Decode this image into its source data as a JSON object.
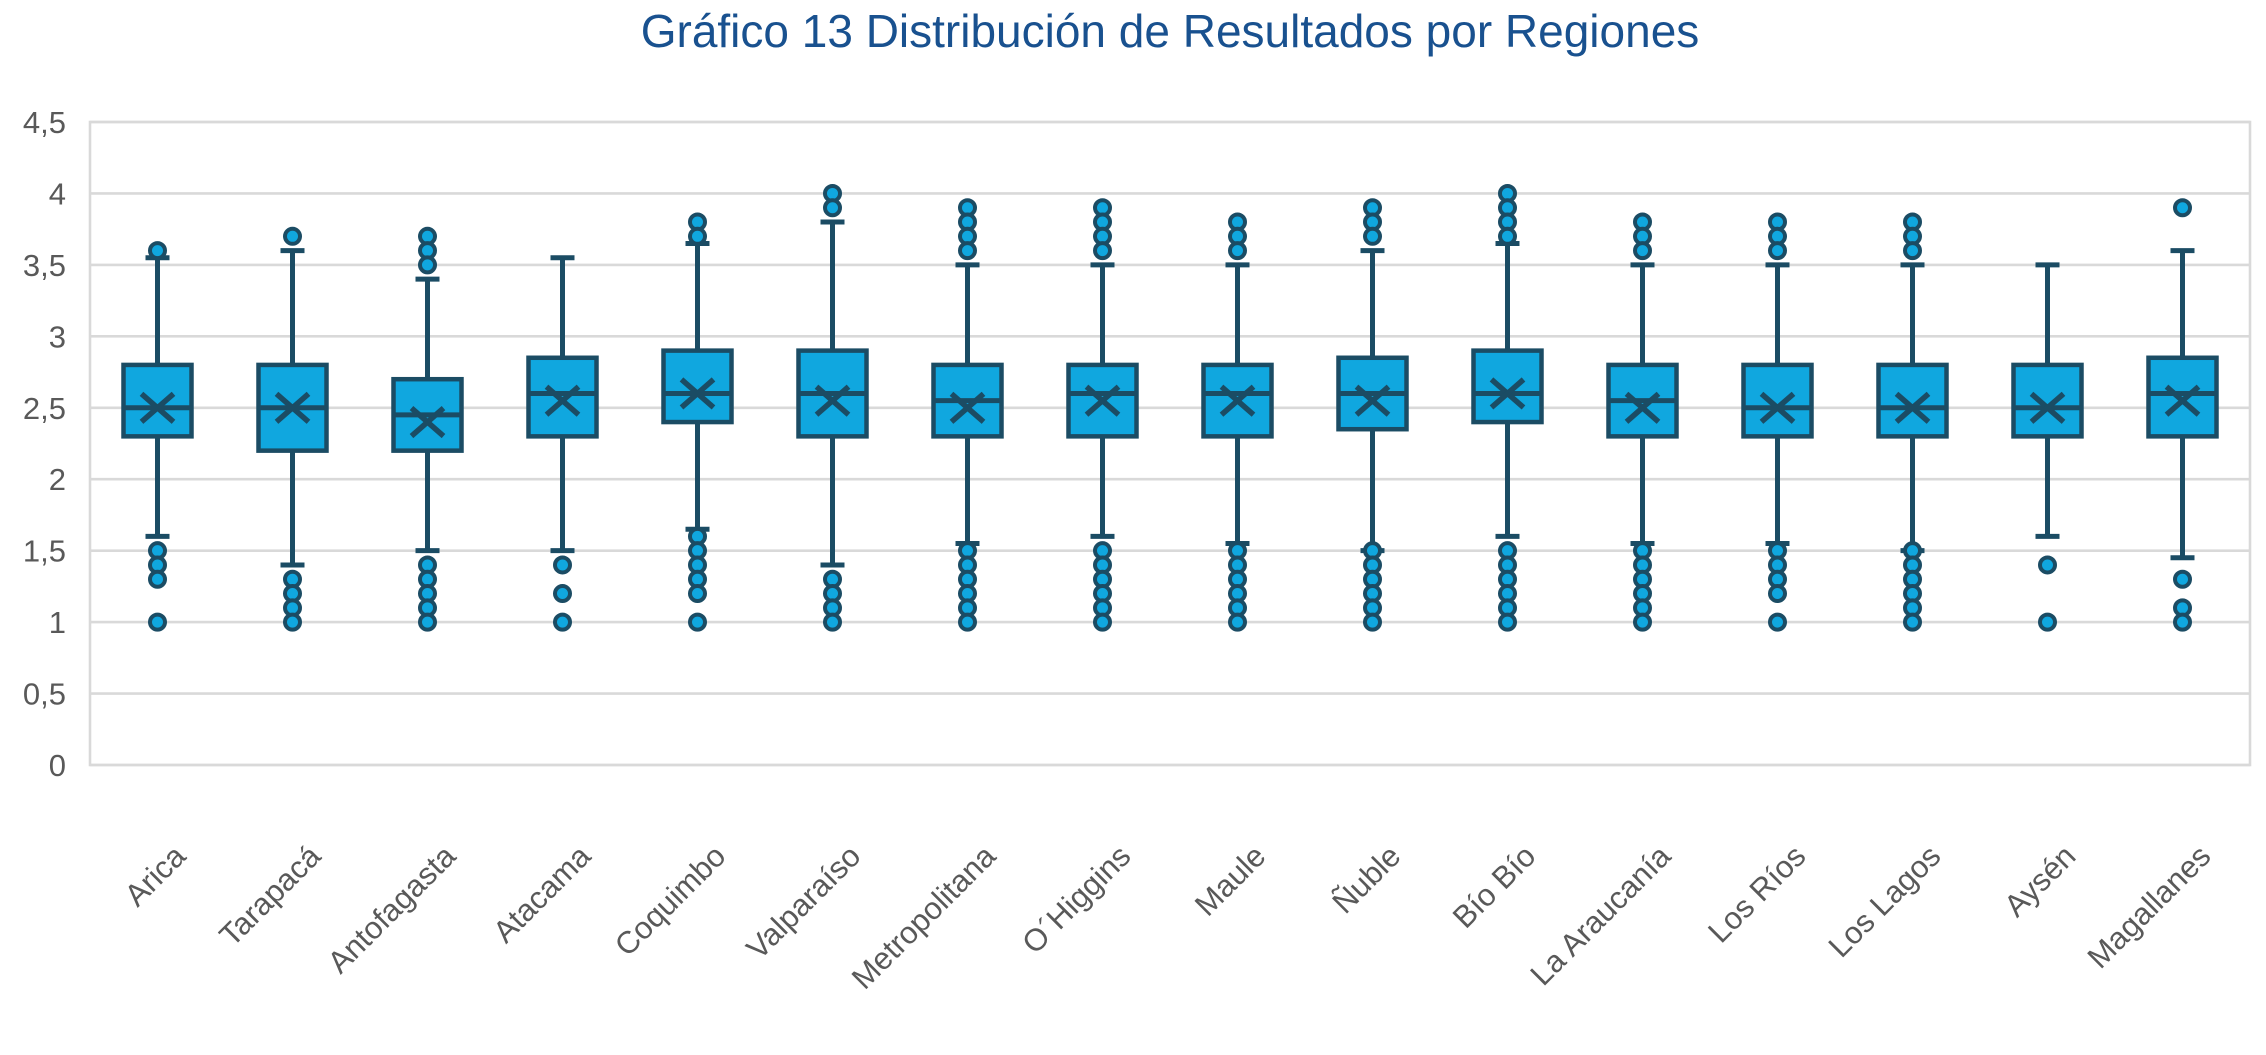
{
  "colors": {
    "title": "#19518F",
    "box_fill": "#10A7DF",
    "box_stroke": "#1B4C64",
    "axis_text": "#595959",
    "gridline": "#D9D9D9"
  },
  "chart_data": {
    "type": "boxplot",
    "title": "Gráfico 13 Distribución de Resultados por Regiones",
    "grid": "horizontal",
    "legend": "none",
    "y_axis": {
      "min": 0,
      "max": 4.5,
      "step": 0.5,
      "tick_labels": [
        "0",
        "0,5",
        "1",
        "1,5",
        "2",
        "2,5",
        "3",
        "3,5",
        "4",
        "4,5"
      ]
    },
    "categories": [
      "Arica",
      "Tarapacá",
      "Antofagasta",
      "Atacama",
      "Coquimbo",
      "Valparaíso",
      "Metropolitana",
      "O´Higgins",
      "Maule",
      "Ñuble",
      "Bío Bío",
      "La Araucanía",
      "Los Ríos",
      "Los Lagos",
      "Aysén",
      "Magallanes"
    ],
    "series": [
      {
        "name": "Arica",
        "whisker_low": 1.6,
        "q1": 2.3,
        "median": 2.5,
        "mean": 2.5,
        "q3": 2.8,
        "whisker_high": 3.55,
        "outliers_high": [
          3.6
        ],
        "outliers_low": [
          1.5,
          1.4,
          1.3,
          1.0
        ]
      },
      {
        "name": "Tarapacá",
        "whisker_low": 1.4,
        "q1": 2.2,
        "median": 2.5,
        "mean": 2.5,
        "q3": 2.8,
        "whisker_high": 3.6,
        "outliers_high": [
          3.7
        ],
        "outliers_low": [
          1.3,
          1.2,
          1.1,
          1.0
        ]
      },
      {
        "name": "Antofagasta",
        "whisker_low": 1.5,
        "q1": 2.2,
        "median": 2.45,
        "mean": 2.4,
        "q3": 2.7,
        "whisker_high": 3.4,
        "outliers_high": [
          3.7,
          3.6,
          3.5
        ],
        "outliers_low": [
          1.4,
          1.3,
          1.2,
          1.1,
          1.0
        ]
      },
      {
        "name": "Atacama",
        "whisker_low": 1.5,
        "q1": 2.3,
        "median": 2.6,
        "mean": 2.55,
        "q3": 2.85,
        "whisker_high": 3.55,
        "outliers_high": [],
        "outliers_low": [
          1.4,
          1.2,
          1.0
        ]
      },
      {
        "name": "Coquimbo",
        "whisker_low": 1.65,
        "q1": 2.4,
        "median": 2.6,
        "mean": 2.6,
        "q3": 2.9,
        "whisker_high": 3.65,
        "outliers_high": [
          3.8,
          3.7
        ],
        "outliers_low": [
          1.6,
          1.5,
          1.4,
          1.3,
          1.2,
          1.0
        ]
      },
      {
        "name": "Valparaíso",
        "whisker_low": 1.4,
        "q1": 2.3,
        "median": 2.6,
        "mean": 2.55,
        "q3": 2.9,
        "whisker_high": 3.8,
        "outliers_high": [
          4.0,
          3.9
        ],
        "outliers_low": [
          1.3,
          1.2,
          1.1,
          1.0
        ]
      },
      {
        "name": "Metropolitana",
        "whisker_low": 1.55,
        "q1": 2.3,
        "median": 2.55,
        "mean": 2.5,
        "q3": 2.8,
        "whisker_high": 3.5,
        "outliers_high": [
          3.9,
          3.8,
          3.7,
          3.6
        ],
        "outliers_low": [
          1.5,
          1.4,
          1.3,
          1.2,
          1.1,
          1.0
        ]
      },
      {
        "name": "O´Higgins",
        "whisker_low": 1.6,
        "q1": 2.3,
        "median": 2.6,
        "mean": 2.55,
        "q3": 2.8,
        "whisker_high": 3.5,
        "outliers_high": [
          3.9,
          3.8,
          3.7,
          3.6
        ],
        "outliers_low": [
          1.5,
          1.4,
          1.3,
          1.2,
          1.1,
          1.0
        ]
      },
      {
        "name": "Maule",
        "whisker_low": 1.55,
        "q1": 2.3,
        "median": 2.6,
        "mean": 2.55,
        "q3": 2.8,
        "whisker_high": 3.5,
        "outliers_high": [
          3.8,
          3.7,
          3.6
        ],
        "outliers_low": [
          1.5,
          1.4,
          1.3,
          1.2,
          1.1,
          1.0
        ]
      },
      {
        "name": "Ñuble",
        "whisker_low": 1.5,
        "q1": 2.35,
        "median": 2.6,
        "mean": 2.55,
        "q3": 2.85,
        "whisker_high": 3.6,
        "outliers_high": [
          3.9,
          3.8,
          3.7
        ],
        "outliers_low": [
          1.5,
          1.4,
          1.3,
          1.2,
          1.1,
          1.0
        ]
      },
      {
        "name": "Bío Bío",
        "whisker_low": 1.6,
        "q1": 2.4,
        "median": 2.6,
        "mean": 2.6,
        "q3": 2.9,
        "whisker_high": 3.65,
        "outliers_high": [
          4.0,
          3.9,
          3.8,
          3.7
        ],
        "outliers_low": [
          1.5,
          1.4,
          1.3,
          1.2,
          1.1,
          1.0
        ]
      },
      {
        "name": "La Araucanía",
        "whisker_low": 1.55,
        "q1": 2.3,
        "median": 2.55,
        "mean": 2.5,
        "q3": 2.8,
        "whisker_high": 3.5,
        "outliers_high": [
          3.8,
          3.7,
          3.6
        ],
        "outliers_low": [
          1.5,
          1.4,
          1.3,
          1.2,
          1.1,
          1.0
        ]
      },
      {
        "name": "Los Ríos",
        "whisker_low": 1.55,
        "q1": 2.3,
        "median": 2.5,
        "mean": 2.5,
        "q3": 2.8,
        "whisker_high": 3.5,
        "outliers_high": [
          3.8,
          3.7,
          3.6
        ],
        "outliers_low": [
          1.5,
          1.4,
          1.3,
          1.2,
          1.0
        ]
      },
      {
        "name": "Los Lagos",
        "whisker_low": 1.5,
        "q1": 2.3,
        "median": 2.5,
        "mean": 2.5,
        "q3": 2.8,
        "whisker_high": 3.5,
        "outliers_high": [
          3.8,
          3.7,
          3.6
        ],
        "outliers_low": [
          1.5,
          1.4,
          1.3,
          1.2,
          1.1,
          1.0
        ]
      },
      {
        "name": "Aysén",
        "whisker_low": 1.6,
        "q1": 2.3,
        "median": 2.5,
        "mean": 2.5,
        "q3": 2.8,
        "whisker_high": 3.5,
        "outliers_high": [],
        "outliers_low": [
          1.4,
          1.0
        ]
      },
      {
        "name": "Magallanes",
        "whisker_low": 1.45,
        "q1": 2.3,
        "median": 2.6,
        "mean": 2.55,
        "q3": 2.85,
        "whisker_high": 3.6,
        "outliers_high": [
          3.9
        ],
        "outliers_low": [
          1.3,
          1.1,
          1.0
        ]
      }
    ]
  }
}
